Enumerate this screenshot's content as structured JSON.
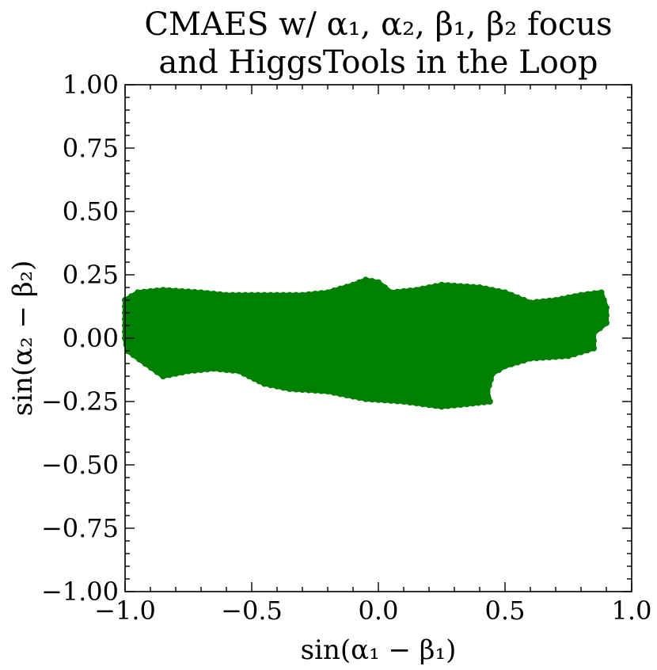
{
  "chart_data": {
    "type": "scatter",
    "title": "CMAES w/ α₁, α₂, β₁, β₂ focus",
    "subtitle": "and HiggsTools in the Loop",
    "xlabel": "sin(α₁ − β₁)",
    "ylabel": "sin(α₂ − β₂)",
    "xlim": [
      -1.0,
      1.0
    ],
    "ylim": [
      -1.0,
      1.0
    ],
    "x_ticks": [
      "−1.0",
      "−0.5",
      "0.0",
      "0.5",
      "1.0"
    ],
    "y_ticks": [
      "1.00",
      "0.75",
      "0.50",
      "0.25",
      "0.00",
      "−0.25",
      "−0.50",
      "−0.75",
      "−1.00"
    ],
    "grid": false,
    "point_color": "#008000",
    "region_outline": [
      {
        "x": -1.0,
        "y": 0.15
      },
      {
        "x": -0.95,
        "y": 0.18
      },
      {
        "x": -0.85,
        "y": 0.19
      },
      {
        "x": -0.7,
        "y": 0.18
      },
      {
        "x": -0.6,
        "y": 0.17
      },
      {
        "x": -0.45,
        "y": 0.17
      },
      {
        "x": -0.3,
        "y": 0.17
      },
      {
        "x": -0.2,
        "y": 0.18
      },
      {
        "x": -0.1,
        "y": 0.21
      },
      {
        "x": -0.05,
        "y": 0.23
      },
      {
        "x": 0.0,
        "y": 0.22
      },
      {
        "x": 0.05,
        "y": 0.18
      },
      {
        "x": 0.15,
        "y": 0.19
      },
      {
        "x": 0.25,
        "y": 0.21
      },
      {
        "x": 0.4,
        "y": 0.2
      },
      {
        "x": 0.5,
        "y": 0.18
      },
      {
        "x": 0.6,
        "y": 0.14
      },
      {
        "x": 0.7,
        "y": 0.15
      },
      {
        "x": 0.8,
        "y": 0.17
      },
      {
        "x": 0.88,
        "y": 0.18
      },
      {
        "x": 0.9,
        "y": 0.12
      },
      {
        "x": 0.9,
        "y": 0.06
      },
      {
        "x": 0.85,
        "y": 0.02
      },
      {
        "x": 0.85,
        "y": -0.04
      },
      {
        "x": 0.75,
        "y": -0.07
      },
      {
        "x": 0.6,
        "y": -0.08
      },
      {
        "x": 0.5,
        "y": -0.11
      },
      {
        "x": 0.45,
        "y": -0.14
      },
      {
        "x": 0.43,
        "y": -0.21
      },
      {
        "x": 0.44,
        "y": -0.25
      },
      {
        "x": 0.35,
        "y": -0.26
      },
      {
        "x": 0.25,
        "y": -0.27
      },
      {
        "x": 0.1,
        "y": -0.25
      },
      {
        "x": -0.05,
        "y": -0.24
      },
      {
        "x": -0.2,
        "y": -0.21
      },
      {
        "x": -0.35,
        "y": -0.2
      },
      {
        "x": -0.45,
        "y": -0.18
      },
      {
        "x": -0.55,
        "y": -0.13
      },
      {
        "x": -0.65,
        "y": -0.12
      },
      {
        "x": -0.75,
        "y": -0.13
      },
      {
        "x": -0.85,
        "y": -0.15
      },
      {
        "x": -0.92,
        "y": -0.1
      },
      {
        "x": -0.99,
        "y": -0.05
      },
      {
        "x": -1.0,
        "y": 0.0
      }
    ]
  }
}
